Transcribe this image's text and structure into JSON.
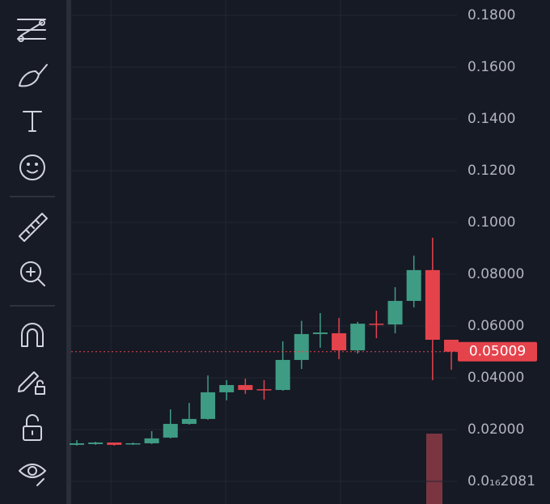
{
  "chart_data": {
    "type": "candlestick",
    "open": [
      0.0141,
      0.0144,
      0.015,
      0.0144,
      0.0147,
      0.0169,
      0.0222,
      0.0241,
      0.0344,
      0.0372,
      0.0356,
      0.0353,
      0.0469,
      0.0569,
      0.0572,
      0.0506,
      0.0609,
      0.0606,
      0.0697,
      0.0816,
      0.0547
    ],
    "high": [
      0.0159,
      0.0153,
      0.015,
      0.015,
      0.0194,
      0.0278,
      0.0303,
      0.0409,
      0.0391,
      0.0397,
      0.0391,
      0.0541,
      0.062,
      0.065,
      0.0631,
      0.0616,
      0.0659,
      0.075,
      0.0872,
      0.0941,
      0.0547
    ],
    "low": [
      0.0138,
      0.0141,
      0.0138,
      0.0141,
      0.0144,
      0.0166,
      0.0219,
      0.0238,
      0.0313,
      0.0338,
      0.0316,
      0.035,
      0.0434,
      0.0516,
      0.0472,
      0.0494,
      0.0553,
      0.0572,
      0.0672,
      0.0391,
      0.0431
    ],
    "close": [
      0.0147,
      0.015,
      0.0141,
      0.0147,
      0.0166,
      0.0222,
      0.0241,
      0.0344,
      0.0372,
      0.0353,
      0.0353,
      0.0469,
      0.0569,
      0.0575,
      0.0506,
      0.0609,
      0.0606,
      0.0697,
      0.0816,
      0.0547,
      0.0501
    ],
    "up_color": "#3f9c84",
    "down_color": "#e5434c",
    "last_price": 0.05009,
    "ylim": [
      -0.00875,
      0.18594
    ],
    "yticks": [
      {
        "value": 0.18,
        "label": "0.1800"
      },
      {
        "value": 0.16,
        "label": "0.1600"
      },
      {
        "value": 0.14,
        "label": "0.1400"
      },
      {
        "value": 0.12,
        "label": "0.1200"
      },
      {
        "value": 0.1,
        "label": "0.1000"
      },
      {
        "value": 0.08,
        "label": "0.08000"
      },
      {
        "value": 0.06,
        "label": "0.06000"
      },
      {
        "value": 0.04,
        "label": "0.04000"
      },
      {
        "value": 0.02,
        "label": "0.02000"
      },
      {
        "value": 2.081e-17,
        "label": "0.0₁₆2081"
      }
    ],
    "grid": true
  }
}
